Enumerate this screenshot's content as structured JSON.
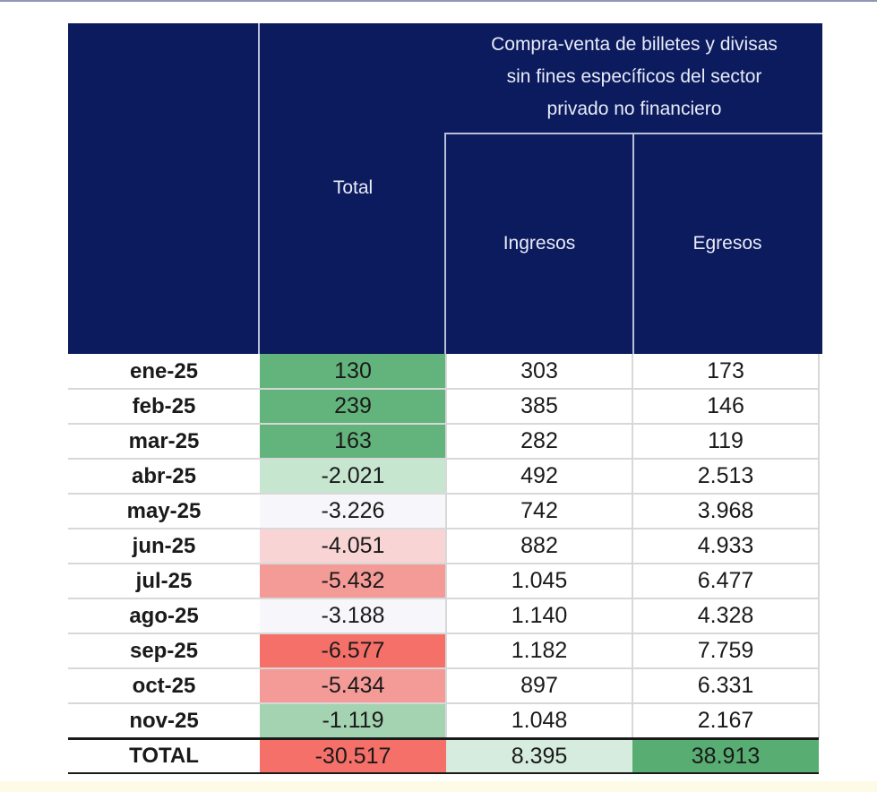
{
  "header": {
    "group_title_lines": [
      "Compra-venta de billetes y divisas",
      "sin fines específicos del sector",
      "privado no financiero"
    ],
    "total_label": "Total",
    "ingresos_label": "Ingresos",
    "egresos_label": "Egresos"
  },
  "rows": [
    {
      "month": "ene-25",
      "total": "130",
      "ingresos": "303",
      "egresos": "173",
      "total_bg": "#63b47c"
    },
    {
      "month": "feb-25",
      "total": "239",
      "ingresos": "385",
      "egresos": "146",
      "total_bg": "#63b47c"
    },
    {
      "month": "mar-25",
      "total": "163",
      "ingresos": "282",
      "egresos": "119",
      "total_bg": "#63b47c"
    },
    {
      "month": "abr-25",
      "total": "-2.021",
      "ingresos": "492",
      "egresos": "2.513",
      "total_bg": "#c7e6d0"
    },
    {
      "month": "may-25",
      "total": "-3.226",
      "ingresos": "742",
      "egresos": "3.968",
      "total_bg": "#f7f7fb"
    },
    {
      "month": "jun-25",
      "total": "-4.051",
      "ingresos": "882",
      "egresos": "4.933",
      "total_bg": "#f9d4d4"
    },
    {
      "month": "jul-25",
      "total": "-5.432",
      "ingresos": "1.045",
      "egresos": "6.477",
      "total_bg": "#f59b97"
    },
    {
      "month": "ago-25",
      "total": "-3.188",
      "ingresos": "1.140",
      "egresos": "4.328",
      "total_bg": "#f7f7fb"
    },
    {
      "month": "sep-25",
      "total": "-6.577",
      "ingresos": "1.182",
      "egresos": "7.759",
      "total_bg": "#f47069"
    },
    {
      "month": "oct-25",
      "total": "-5.434",
      "ingresos": "897",
      "egresos": "6.331",
      "total_bg": "#f59b97"
    },
    {
      "month": "nov-25",
      "total": "-1.119",
      "ingresos": "1.048",
      "egresos": "2.167",
      "total_bg": "#a4d3b1"
    }
  ],
  "total_row": {
    "label": "TOTAL",
    "total": "-30.517",
    "ingresos": "8.395",
    "egresos": "38.913",
    "total_bg": "#f47069",
    "ingresos_bg": "#d6ecde",
    "egresos_bg": "#57ad72"
  }
}
